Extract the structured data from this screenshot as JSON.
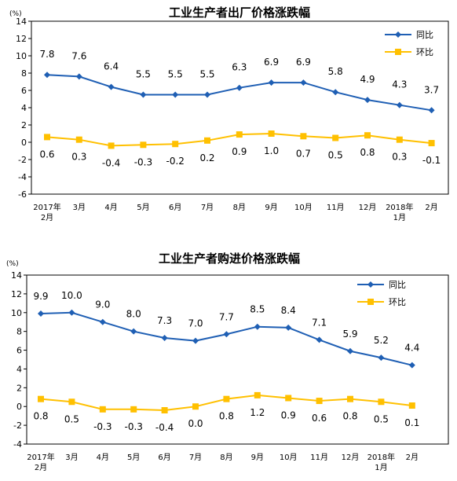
{
  "chart_data": [
    {
      "type": "line",
      "title": "工业生产者出厂价格涨跌幅",
      "ylabel": "(%)",
      "ylim": [
        -6,
        14
      ],
      "yticks": [
        -6,
        -4,
        -2,
        0,
        2,
        4,
        6,
        8,
        10,
        12,
        14
      ],
      "categories": [
        {
          "line1": "2017年",
          "line2": "2月"
        },
        {
          "line1": "3月",
          "line2": ""
        },
        {
          "line1": "4月",
          "line2": ""
        },
        {
          "line1": "5月",
          "line2": ""
        },
        {
          "line1": "6月",
          "line2": ""
        },
        {
          "line1": "7月",
          "line2": ""
        },
        {
          "line1": "8月",
          "line2": ""
        },
        {
          "line1": "9月",
          "line2": ""
        },
        {
          "line1": "10月",
          "line2": ""
        },
        {
          "line1": "11月",
          "line2": ""
        },
        {
          "line1": "12月",
          "line2": ""
        },
        {
          "line1": "2018年",
          "line2": "1月"
        },
        {
          "line1": "2月",
          "line2": ""
        }
      ],
      "legend_position": "top-right",
      "series": [
        {
          "name": "同比",
          "color": "#1f5fb4",
          "marker": "diamond",
          "values": [
            7.8,
            7.6,
            6.4,
            5.5,
            5.5,
            5.5,
            6.3,
            6.9,
            6.9,
            5.8,
            4.9,
            4.3,
            3.7
          ],
          "labels": [
            "7.8",
            "7.6",
            "6.4",
            "5.5",
            "5.5",
            "5.5",
            "6.3",
            "6.9",
            "6.9",
            "5.8",
            "4.9",
            "4.3",
            "3.7"
          ]
        },
        {
          "name": "环比",
          "color": "#ffc000",
          "marker": "square",
          "values": [
            0.6,
            0.3,
            -0.4,
            -0.3,
            -0.2,
            0.2,
            0.9,
            1.0,
            0.7,
            0.5,
            0.8,
            0.3,
            -0.1
          ],
          "labels": [
            "0.6",
            "0.3",
            "-0.4",
            "-0.3",
            "-0.2",
            "0.2",
            "0.9",
            "1.0",
            "0.7",
            "0.5",
            "0.8",
            "0.3",
            "-0.1"
          ]
        }
      ]
    },
    {
      "type": "line",
      "title": "工业生产者购进价格涨跌幅",
      "ylabel": "(%)",
      "ylim": [
        -4,
        14
      ],
      "yticks": [
        -4,
        -2,
        0,
        2,
        4,
        6,
        8,
        10,
        12,
        14
      ],
      "categories": [
        {
          "line1": "2017年",
          "line2": "2月"
        },
        {
          "line1": "3月",
          "line2": ""
        },
        {
          "line1": "4月",
          "line2": ""
        },
        {
          "line1": "5月",
          "line2": ""
        },
        {
          "line1": "6月",
          "line2": ""
        },
        {
          "line1": "7月",
          "line2": ""
        },
        {
          "line1": "8月",
          "line2": ""
        },
        {
          "line1": "9月",
          "line2": ""
        },
        {
          "line1": "10月",
          "line2": ""
        },
        {
          "line1": "11月",
          "line2": ""
        },
        {
          "line1": "12月",
          "line2": ""
        },
        {
          "line1": "2018年",
          "line2": "1月"
        },
        {
          "line1": "2月",
          "line2": ""
        }
      ],
      "legend_position": "top-right",
      "series": [
        {
          "name": "同比",
          "color": "#1f5fb4",
          "marker": "diamond",
          "values": [
            9.9,
            10.0,
            9.0,
            8.0,
            7.3,
            7.0,
            7.7,
            8.5,
            8.4,
            7.1,
            5.9,
            5.2,
            4.4
          ],
          "labels": [
            "9.9",
            "10.0",
            "9.0",
            "8.0",
            "7.3",
            "7.0",
            "7.7",
            "8.5",
            "8.4",
            "7.1",
            "5.9",
            "5.2",
            "4.4"
          ]
        },
        {
          "name": "环比",
          "color": "#ffc000",
          "marker": "square",
          "values": [
            0.8,
            0.5,
            -0.3,
            -0.3,
            -0.4,
            0.0,
            0.8,
            1.2,
            0.9,
            0.6,
            0.8,
            0.5,
            0.1
          ],
          "labels": [
            "0.8",
            "0.5",
            "-0.3",
            "-0.3",
            "-0.4",
            "0.0",
            "0.8",
            "1.2",
            "0.9",
            "0.6",
            "0.8",
            "0.5",
            "0.1"
          ]
        }
      ]
    }
  ]
}
